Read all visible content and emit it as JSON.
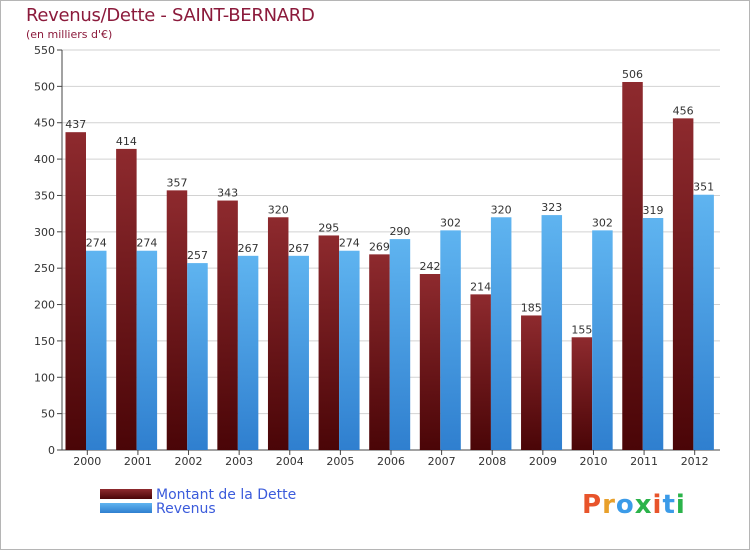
{
  "header": {
    "title": "Revenus/Dette - SAINT-BERNARD",
    "subtitle": "(en milliers d'€)"
  },
  "brand": {
    "text": "Proxiti",
    "letter_colors": [
      "#e8542b",
      "#e8a02b",
      "#3b9be8",
      "#2bb34a",
      "#e8542b",
      "#3b9be8",
      "#2bb34a"
    ]
  },
  "chart_data": {
    "type": "bar",
    "categories": [
      "2000",
      "2001",
      "2002",
      "2003",
      "2004",
      "2005",
      "2006",
      "2007",
      "2008",
      "2009",
      "2010",
      "2011",
      "2012"
    ],
    "series": [
      {
        "name": "Montant de la Dette",
        "color": "#7a1418",
        "values": [
          437,
          414,
          357,
          343,
          320,
          295,
          269,
          242,
          214,
          185,
          155,
          506,
          456
        ]
      },
      {
        "name": "Revenus",
        "color": "#4aa3e8",
        "values": [
          274,
          274,
          257,
          267,
          267,
          274,
          290,
          302,
          320,
          323,
          302,
          319,
          351
        ]
      }
    ],
    "ylim": [
      0,
      550
    ],
    "yticks": [
      0,
      50,
      100,
      150,
      200,
      250,
      300,
      350,
      400,
      450,
      500,
      550
    ],
    "grid": true,
    "legend_position": "bottom-left"
  }
}
